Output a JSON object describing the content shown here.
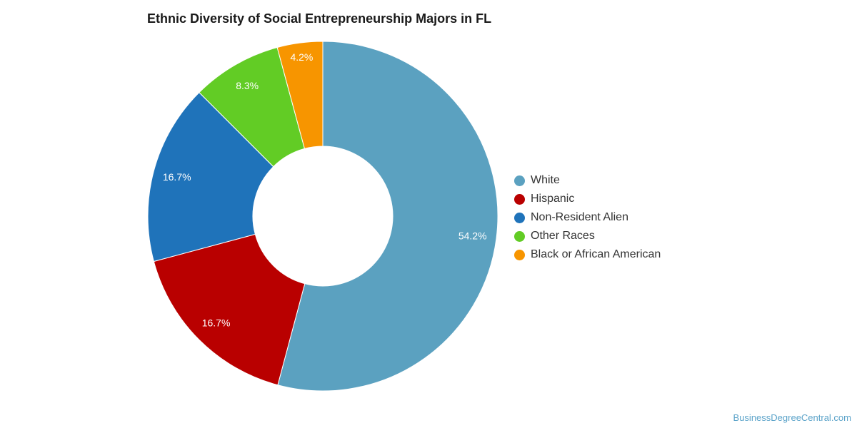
{
  "chart_data": {
    "type": "pie",
    "title": "Ethnic Diversity of Social Entrepreneurship Majors in FL",
    "donut": true,
    "legend_position": "right",
    "slices": [
      {
        "label": "White",
        "value": 54.2,
        "display": "54.2%",
        "color": "#5ba1c0"
      },
      {
        "label": "Hispanic",
        "value": 16.7,
        "display": "16.7%",
        "color": "#b90000"
      },
      {
        "label": "Non-Resident Alien",
        "value": 16.7,
        "display": "16.7%",
        "color": "#1f73ba"
      },
      {
        "label": "Other Races",
        "value": 8.3,
        "display": "8.3%",
        "color": "#62cc25"
      },
      {
        "label": "Black or African American",
        "value": 4.2,
        "display": "4.2%",
        "color": "#f79500"
      }
    ]
  },
  "watermark": "BusinessDegreeCentral.com"
}
